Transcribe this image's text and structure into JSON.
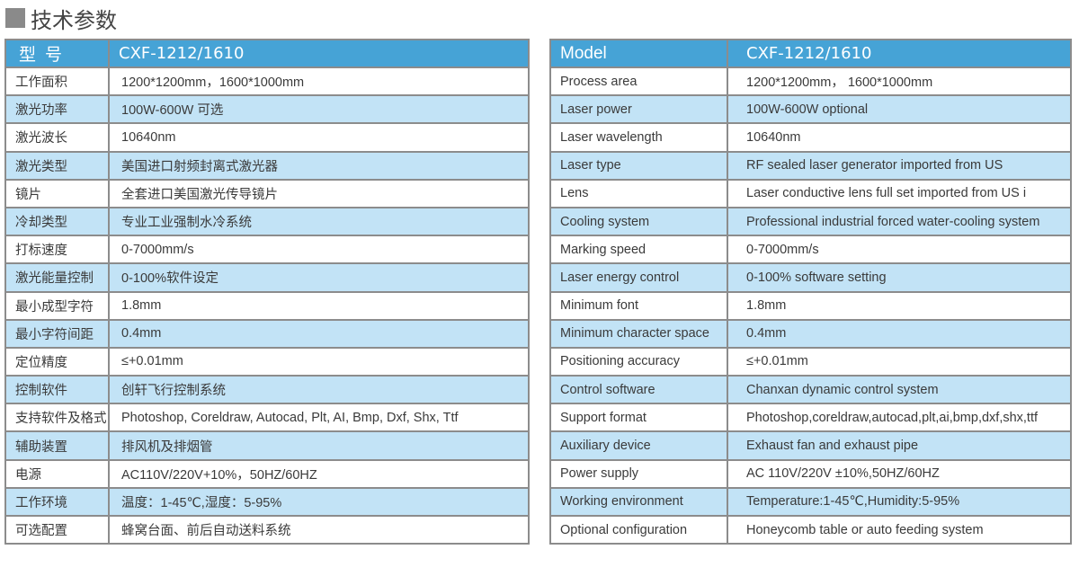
{
  "section_title": "技术参数",
  "colors": {
    "header": "#46a3d6",
    "alt_row": "#c2e3f6",
    "border": "#8c8c8c",
    "title_square": "#8a8a8a"
  },
  "table_cn": {
    "header": [
      "型号",
      "CXF-1212/1610"
    ],
    "rows": [
      [
        "工作面积",
        "1200*1200mm，1600*1000mm"
      ],
      [
        "激光功率",
        "100W-600W 可选"
      ],
      [
        "激光波长",
        "10640nm"
      ],
      [
        "激光类型",
        "美国进口射频封离式激光器"
      ],
      [
        "镜片",
        "全套进口美国激光传导镜片"
      ],
      [
        "冷却类型",
        "专业工业强制水冷系统"
      ],
      [
        "打标速度",
        "0-7000mm/s"
      ],
      [
        "激光能量控制",
        "0-100%软件设定"
      ],
      [
        "最小成型字符",
        "1.8mm"
      ],
      [
        "最小字符间距",
        "0.4mm"
      ],
      [
        "定位精度",
        "≤+0.01mm"
      ],
      [
        "控制软件",
        "创轩飞行控制系统"
      ],
      [
        "支持软件及格式",
        "Photoshop, Coreldraw, Autocad, Plt, AI, Bmp, Dxf, Shx, Ttf"
      ],
      [
        "辅助装置",
        "排风机及排烟管"
      ],
      [
        "电源",
        "AC110V/220V+10%，50HZ/60HZ"
      ],
      [
        "工作环境",
        "温度：1-45℃,湿度：5-95%"
      ],
      [
        "可选配置",
        "蜂窝台面、前后自动送料系统"
      ]
    ]
  },
  "table_en": {
    "header": [
      "Model",
      "CXF-1212/1610"
    ],
    "rows": [
      [
        "Process area",
        "1200*1200mm， 1600*1000mm"
      ],
      [
        "Laser power",
        "100W-600W optional"
      ],
      [
        "Laser wavelength",
        "10640nm"
      ],
      [
        "Laser type",
        "RF sealed laser generator imported from US"
      ],
      [
        "Lens",
        "Laser conductive lens full set imported from US i"
      ],
      [
        "Cooling system",
        "Professional industrial forced water-cooling system"
      ],
      [
        "Marking speed",
        "0-7000mm/s"
      ],
      [
        "Laser energy control",
        "0-100% software setting"
      ],
      [
        "Minimum  font",
        "1.8mm"
      ],
      [
        "Minimum character space",
        "0.4mm"
      ],
      [
        "Positioning accuracy",
        "≤+0.01mm"
      ],
      [
        "Control software",
        "Chanxan dynamic control system"
      ],
      [
        "Support format",
        "Photoshop,coreldraw,autocad,plt,ai,bmp,dxf,shx,ttf"
      ],
      [
        "Auxiliary device",
        "Exhaust fan and exhaust pipe"
      ],
      [
        "Power supply",
        "AC 110V/220V ±10%,50HZ/60HZ"
      ],
      [
        "Working environment",
        "Temperature:1-45℃,Humidity:5-95%"
      ],
      [
        "Optional configuration",
        "Honeycomb table or auto feeding system"
      ]
    ]
  }
}
